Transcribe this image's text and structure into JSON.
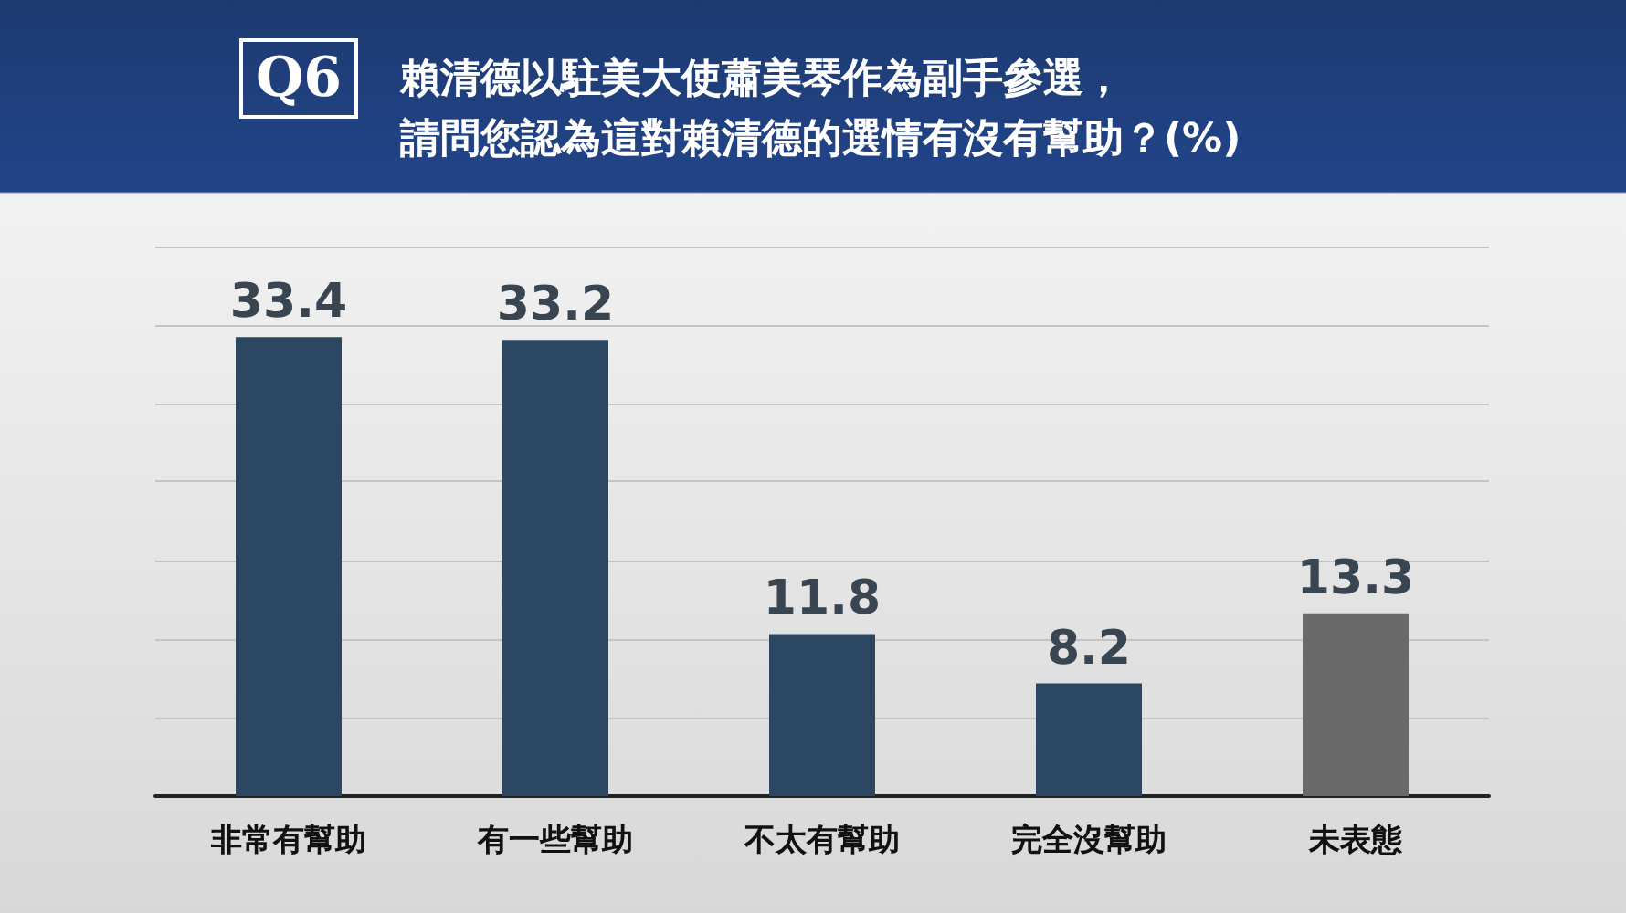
{
  "chart_data": {
    "type": "bar",
    "title": "賴清德以駐美大使蕭美琴作為副手參選，請問您認為這對賴清德的選情有沒有幫助？(%)",
    "annotations": [
      "Q6"
    ],
    "categories": [
      "非常有幫助",
      "有一些幫助",
      "不太有幫助",
      "完全沒幫助",
      "未表態"
    ],
    "values": [
      33.4,
      33.2,
      11.8,
      8.2,
      13.3
    ],
    "colors": [
      "#2c4761",
      "#2c4761",
      "#2c4761",
      "#2c4761",
      "#6a6a6a"
    ],
    "data_labels": true,
    "ylim": [
      0,
      40
    ],
    "yticks": [
      {
        "value": 0,
        "label": null
      },
      {
        "value": 5.7,
        "label": null
      },
      {
        "value": 11.4,
        "label": null
      },
      {
        "value": 17.1,
        "label": null
      },
      {
        "value": 22.9,
        "label": null
      },
      {
        "value": 28.6,
        "label": null
      },
      {
        "value": 34.3,
        "label": null
      },
      {
        "value": 40,
        "label": null
      }
    ],
    "grid": "y",
    "tick_labels": "x"
  }
}
